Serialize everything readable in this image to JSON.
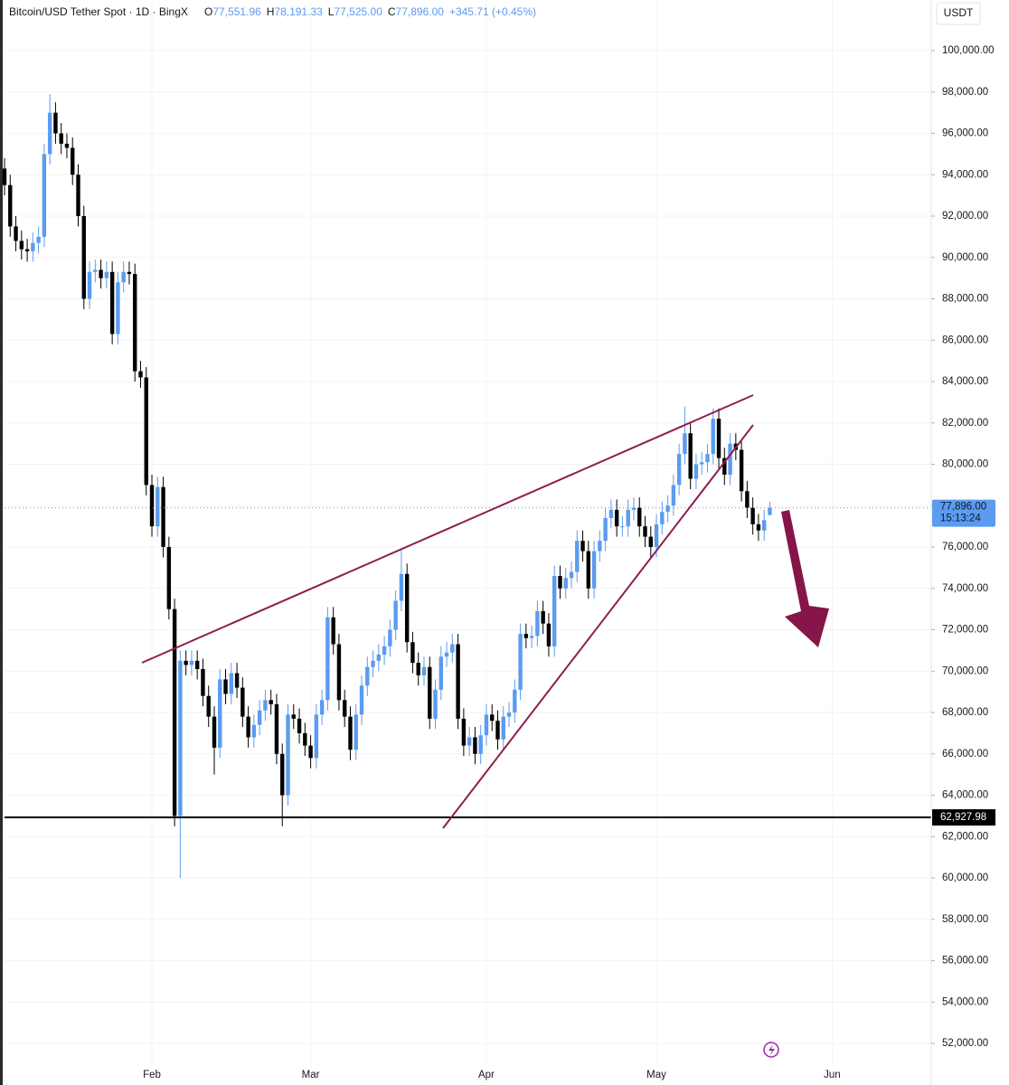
{
  "chart_data": {
    "type": "candlestick",
    "title": "Bitcoin/USD Tether Spot · 1D · BingX",
    "legend_ohlc": [
      {
        "key": "O",
        "text": "77,551.96"
      },
      {
        "key": "H",
        "text": "78,191.33"
      },
      {
        "key": "L",
        "text": "77,525.00"
      },
      {
        "key": "C",
        "text": "77,896.00"
      }
    ],
    "change_text": "+345.71 (+0.45%)",
    "currency": "USDT",
    "up_color": "#5b9bf0",
    "down_color": "#000000",
    "grid": true,
    "categories": [
      null,
      null,
      null,
      null,
      null,
      null,
      null,
      null,
      null,
      null,
      null,
      null,
      null,
      null,
      null,
      null,
      null,
      null,
      null,
      null,
      null,
      null,
      null,
      null,
      null,
      null,
      "Feb",
      null,
      null,
      null,
      null,
      null,
      null,
      null,
      null,
      null,
      null,
      null,
      null,
      null,
      null,
      null,
      null,
      null,
      null,
      null,
      null,
      null,
      null,
      null,
      null,
      null,
      null,
      null,
      "Mar",
      null,
      null,
      null,
      null,
      null,
      null,
      null,
      null,
      null,
      null,
      null,
      null,
      null,
      null,
      null,
      null,
      null,
      null,
      null,
      null,
      null,
      null,
      null,
      null,
      null,
      null,
      null,
      null,
      null,
      null,
      "Apr",
      null,
      null,
      null,
      null,
      null,
      null,
      null,
      null,
      null,
      null,
      null,
      null,
      null,
      null,
      null,
      null,
      null,
      null,
      null,
      null,
      null,
      null,
      null,
      null,
      null,
      null,
      null,
      null,
      null,
      "May",
      null,
      null,
      null,
      null,
      null,
      null,
      null,
      null,
      null,
      null,
      null,
      null,
      null,
      null,
      null,
      null,
      null,
      null,
      null,
      null,
      null,
      null,
      null,
      null,
      null,
      null,
      null,
      null,
      null,
      null,
      "Jun"
    ],
    "open": [
      94300,
      93500,
      91500,
      90800,
      90400,
      90300,
      90700,
      91000,
      95000,
      97000,
      96000,
      95500,
      95300,
      94000,
      92000,
      88000,
      89300,
      89400,
      89000,
      89300,
      86300,
      88800,
      89300,
      89200,
      84500,
      84200,
      79000,
      77000,
      78900,
      76000,
      73000,
      63000,
      70500,
      70300,
      70500,
      70100,
      68800,
      67800,
      66300,
      69600,
      68900,
      69900,
      69200,
      67800,
      66800,
      67400,
      68100,
      68600,
      68400,
      66000,
      64000,
      67900,
      67700,
      67000,
      66400,
      65800,
      67900,
      68600,
      72600,
      71300,
      68600,
      67800,
      66200,
      67900,
      69300,
      70200,
      70500,
      70800,
      71200,
      72000,
      73400,
      74700,
      71400,
      70400,
      69800,
      70200,
      67700,
      69100,
      70700,
      70900,
      71300,
      67700,
      66400,
      66800,
      66000,
      66900,
      67900,
      67600,
      66700,
      67800,
      68000,
      69100,
      71800,
      71600,
      71700,
      72900,
      72300,
      71200,
      74600,
      74000,
      74500,
      74800,
      76300,
      75800,
      74000,
      75800,
      76300,
      77400,
      77800,
      77000,
      77000,
      77800,
      77900,
      77000,
      76500,
      76000,
      77100,
      77700,
      78000,
      79000,
      80500,
      81500,
      79300,
      80000,
      80100,
      80500,
      82200,
      80300,
      79500,
      81000,
      80700,
      78700,
      77900,
      77100,
      76800,
      77551.96,
      null,
      null,
      null,
      null,
      null,
      null,
      null,
      null,
      null,
      null,
      null
    ],
    "high": [
      94800,
      94000,
      92000,
      91300,
      90900,
      91200,
      91500,
      95500,
      97900,
      97500,
      96500,
      96000,
      95800,
      94500,
      92500,
      89800,
      89900,
      89900,
      89800,
      89800,
      89300,
      89800,
      89800,
      89700,
      85000,
      84700,
      79500,
      79400,
      79400,
      76500,
      73500,
      71000,
      71000,
      71000,
      71000,
      70600,
      69300,
      68300,
      70100,
      70100,
      70400,
      70400,
      69700,
      68300,
      67900,
      68600,
      69100,
      69100,
      68900,
      66500,
      68400,
      68400,
      68200,
      67500,
      66900,
      68400,
      69100,
      73100,
      73100,
      71800,
      69100,
      68300,
      68400,
      69800,
      70700,
      71000,
      71300,
      71700,
      72500,
      73900,
      75900,
      75200,
      71900,
      70900,
      70700,
      70700,
      69600,
      71200,
      71400,
      71800,
      71800,
      68200,
      67300,
      67300,
      67400,
      68400,
      68400,
      68100,
      68300,
      68500,
      69600,
      72300,
      72300,
      72200,
      73400,
      73400,
      72800,
      75100,
      75100,
      75000,
      75300,
      76800,
      76800,
      76300,
      76300,
      76800,
      77900,
      78300,
      78300,
      77500,
      78300,
      78400,
      78400,
      77500,
      77000,
      77600,
      78200,
      78500,
      79500,
      81000,
      82800,
      82000,
      80500,
      80600,
      81000,
      82700,
      82700,
      80800,
      81500,
      81500,
      81200,
      79200,
      78400,
      77600,
      77800,
      78191.33,
      null,
      null,
      null,
      null,
      null,
      null,
      null,
      null,
      null,
      null,
      null
    ],
    "low": [
      93000,
      91000,
      90300,
      89900,
      89800,
      89800,
      90200,
      90500,
      94500,
      95500,
      95000,
      94800,
      93500,
      91500,
      87500,
      87500,
      88800,
      88500,
      88500,
      85800,
      85800,
      88300,
      88700,
      84000,
      83700,
      78500,
      76500,
      76500,
      75500,
      72500,
      62500,
      60000,
      69800,
      69800,
      69600,
      68300,
      67300,
      65000,
      65800,
      68400,
      68400,
      68700,
      67300,
      66300,
      66300,
      66900,
      67600,
      67900,
      65500,
      62500,
      63500,
      67200,
      66500,
      65900,
      65300,
      65300,
      67400,
      68100,
      70800,
      68100,
      67300,
      65700,
      65700,
      67400,
      68800,
      69700,
      70000,
      70300,
      70700,
      71500,
      72900,
      70900,
      69900,
      69300,
      69300,
      67200,
      67200,
      68600,
      70200,
      70400,
      67200,
      65900,
      65900,
      65500,
      65500,
      66400,
      67100,
      66200,
      66200,
      67300,
      67500,
      68600,
      71100,
      71100,
      71200,
      71800,
      70700,
      70700,
      73500,
      73500,
      74000,
      74300,
      75300,
      73500,
      73500,
      75300,
      75800,
      76900,
      76500,
      76500,
      76500,
      77300,
      76500,
      76000,
      75500,
      75500,
      76600,
      77200,
      77500,
      78500,
      80000,
      78800,
      78800,
      79500,
      79600,
      80000,
      79800,
      79000,
      79000,
      80200,
      78200,
      77400,
      76600,
      76300,
      76300,
      77525,
      null,
      null,
      null,
      null,
      null,
      null,
      null,
      null,
      null,
      null,
      null
    ],
    "close": [
      93500,
      91500,
      90800,
      90400,
      90300,
      90700,
      91000,
      95000,
      97000,
      96000,
      95500,
      95300,
      94000,
      92000,
      88000,
      89300,
      89400,
      89000,
      89300,
      86300,
      88800,
      89300,
      89200,
      84500,
      84200,
      79000,
      77000,
      78900,
      76000,
      73000,
      63000,
      70500,
      70300,
      70500,
      70100,
      68800,
      67800,
      66300,
      69600,
      68900,
      69900,
      69200,
      67800,
      66800,
      67400,
      68100,
      68600,
      68400,
      66000,
      64000,
      67900,
      67700,
      67000,
      66400,
      65800,
      67900,
      68600,
      72600,
      71300,
      68600,
      67800,
      66200,
      67900,
      69300,
      70200,
      70500,
      70800,
      71200,
      72000,
      73400,
      74700,
      71400,
      70400,
      69800,
      70200,
      67700,
      69100,
      70700,
      70900,
      71300,
      67700,
      66400,
      66800,
      66000,
      66900,
      67900,
      67600,
      66700,
      67800,
      68000,
      69100,
      71800,
      71600,
      71700,
      72900,
      72300,
      71200,
      74600,
      74000,
      74500,
      74800,
      76300,
      75800,
      74000,
      75800,
      76300,
      77400,
      77800,
      77000,
      77000,
      77800,
      77900,
      77000,
      76500,
      76000,
      77100,
      77700,
      78000,
      79000,
      80500,
      81500,
      79300,
      80000,
      80100,
      80500,
      82200,
      80300,
      79500,
      81000,
      80700,
      78700,
      77900,
      77100,
      76800,
      77300,
      77896,
      null,
      null,
      null,
      null,
      null,
      null,
      null,
      null,
      null,
      null,
      null
    ],
    "ylim": [
      51000,
      102000
    ],
    "yticks": [
      {
        "value": 52000,
        "label": "52,000.00"
      },
      {
        "value": 54000,
        "label": "54,000.00"
      },
      {
        "value": 56000,
        "label": "56,000.00"
      },
      {
        "value": 58000,
        "label": "58,000.00"
      },
      {
        "value": 60000,
        "label": "60,000.00"
      },
      {
        "value": 62000,
        "label": "62,000.00"
      },
      {
        "value": 64000,
        "label": "64,000.00"
      },
      {
        "value": 66000,
        "label": "66,000.00"
      },
      {
        "value": 68000,
        "label": "68,000.00"
      },
      {
        "value": 70000,
        "label": "70,000.00"
      },
      {
        "value": 72000,
        "label": "72,000.00"
      },
      {
        "value": 74000,
        "label": "74,000.00"
      },
      {
        "value": 76000,
        "label": "76,000.00"
      },
      {
        "value": 78000,
        "label": "78,000.00"
      },
      {
        "value": 80000,
        "label": "80,000.00"
      },
      {
        "value": 82000,
        "label": "82,000.00"
      },
      {
        "value": 84000,
        "label": "84,000.00"
      },
      {
        "value": 86000,
        "label": "86,000.00"
      },
      {
        "value": 88000,
        "label": "88,000.00"
      },
      {
        "value": 90000,
        "label": "90,000.00"
      },
      {
        "value": 92000,
        "label": "92,000.00"
      },
      {
        "value": 94000,
        "label": "94,000.00"
      },
      {
        "value": 96000,
        "label": "96,000.00"
      },
      {
        "value": 98000,
        "label": "98,000.00"
      },
      {
        "value": 100000,
        "label": "100,000.00"
      }
    ],
    "last_price": {
      "value": 77896,
      "label": "77,896.00",
      "countdown": "15:13:24"
    },
    "hline": {
      "value": 62927.98,
      "label": "62,927.98"
    }
  }
}
